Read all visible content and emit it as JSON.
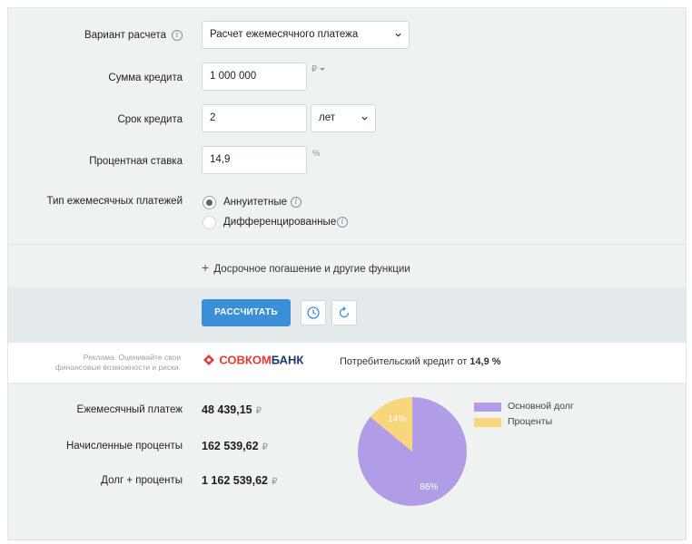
{
  "form": {
    "calc_variant": {
      "label": "Вариант расчета",
      "value": "Расчет ежемесячного платежа"
    },
    "loan_amount": {
      "label": "Сумма кредита",
      "value": "1 000 000",
      "unit": "₽"
    },
    "loan_term": {
      "label": "Срок кредита",
      "value": "2",
      "unit_value": "лет"
    },
    "interest_rate": {
      "label": "Процентная ставка",
      "value": "14,9",
      "unit": "%"
    },
    "payment_type": {
      "label": "Тип ежемесячных платежей",
      "options": [
        {
          "label": "Аннуитетные",
          "checked": true
        },
        {
          "label": "Дифференцированные",
          "checked": false
        }
      ]
    },
    "extra_link": "Досрочное погашение и другие функции"
  },
  "actions": {
    "calculate_label": "РАССЧИТАТЬ"
  },
  "ad": {
    "text_line1": "Реклама. Оценивайте свои",
    "text_line2": "финансовые возможности и риски.",
    "bank_name_part1": "СОВКОМ",
    "bank_name_part2": "БАНК",
    "offer_text": "Потребительский кредит от ",
    "offer_rate": "14,9 %"
  },
  "results": {
    "monthly_payment": {
      "label": "Ежемесячный платеж",
      "value": "48 439,15",
      "currency": "₽"
    },
    "accrued_interest": {
      "label": "Начисленные проценты",
      "value": "162 539,62",
      "currency": "₽"
    },
    "total": {
      "label": "Долг + проценты",
      "value": "1 162 539,62",
      "currency": "₽"
    }
  },
  "chart_data": {
    "type": "pie",
    "labels": [
      "Основной долг",
      "Проценты"
    ],
    "values": [
      86,
      14
    ],
    "value_labels": [
      "86%",
      "14%"
    ],
    "colors": [
      "#b19ce6",
      "#f7d67c"
    ],
    "legend": "right"
  },
  "colors": {
    "accent": "#3b8fd6",
    "ad_brand_red": "#e53935",
    "ad_brand_blue": "#1b3a6b"
  }
}
